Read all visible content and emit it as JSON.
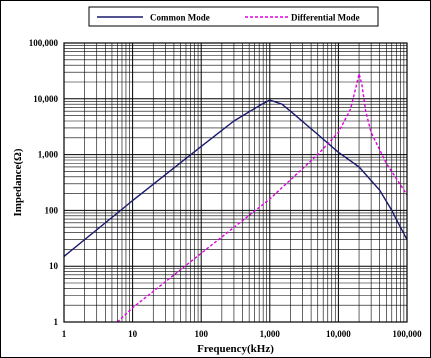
{
  "chart_data": {
    "type": "line",
    "title": "",
    "xlabel": "Frequency(kHz)",
    "ylabel": "Impedance(Ω)",
    "xscale": "log",
    "yscale": "log",
    "xlim": [
      1,
      100000
    ],
    "ylim": [
      1,
      100000
    ],
    "grid": true,
    "legend_position": "top",
    "x_ticks": [
      "1",
      "10",
      "100",
      "1,000",
      "10,000",
      "100,000"
    ],
    "y_ticks": [
      "1",
      "10",
      "100",
      "1,000",
      "10,000",
      "100,000"
    ],
    "series": [
      {
        "name": "Common Mode",
        "color": "#1a1a6e",
        "style": "solid",
        "x": [
          1,
          10,
          100,
          300,
          700,
          1000,
          1500,
          2000,
          5000,
          10000,
          20000,
          40000,
          60000,
          80000,
          100000
        ],
        "y": [
          15,
          150,
          1400,
          4000,
          7500,
          9500,
          8000,
          6000,
          2300,
          1100,
          600,
          230,
          100,
          50,
          30
        ]
      },
      {
        "name": "Differential Mode",
        "color": "#e000e0",
        "style": "dashed",
        "x": [
          6,
          10,
          100,
          1000,
          5000,
          10000,
          15000,
          18000,
          20000,
          22000,
          25000,
          30000,
          50000,
          100000
        ],
        "y": [
          1,
          1.8,
          17,
          160,
          1000,
          2500,
          6500,
          16000,
          28000,
          18000,
          6000,
          2500,
          700,
          190
        ]
      }
    ]
  }
}
